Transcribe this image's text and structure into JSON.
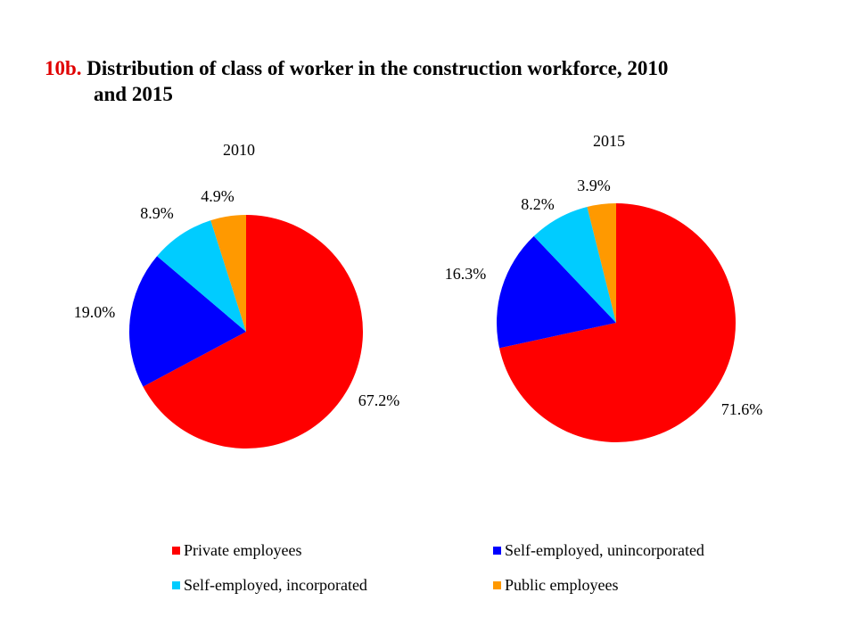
{
  "chart_data": [
    {
      "type": "pie",
      "title": "2010",
      "categories": [
        "Private employees",
        "Self-employed, unincorporated",
        "Self-employed, incorporated",
        "Public employees"
      ],
      "values": [
        67.2,
        19.0,
        8.9,
        4.9
      ],
      "labels": [
        "67.2%",
        "19.0%",
        "8.9%",
        "4.9%"
      ],
      "start": "12 o'clock, clockwise"
    },
    {
      "type": "pie",
      "title": "2015",
      "categories": [
        "Private employees",
        "Self-employed, unincorporated",
        "Self-employed, incorporated",
        "Public employees"
      ],
      "values": [
        71.6,
        16.3,
        8.2,
        3.9
      ],
      "labels": [
        "71.6%",
        "16.3%",
        "8.2%",
        "3.9%"
      ],
      "start": "12 o'clock, clockwise"
    }
  ],
  "figure": {
    "title_number": "10b.",
    "title_line1": "Distribution of class of worker in the construction workforce, 2010",
    "title_line2": "and 2015"
  },
  "legend": {
    "placement": "bottom",
    "items": [
      {
        "label": "Private employees",
        "color": "#FF0000"
      },
      {
        "label": "Self-employed, unincorporated",
        "color": "#0000FF"
      },
      {
        "label": "Self-employed, incorporated",
        "color": "#00CCFF"
      },
      {
        "label": "Public employees",
        "color": "#FF9900"
      }
    ]
  }
}
